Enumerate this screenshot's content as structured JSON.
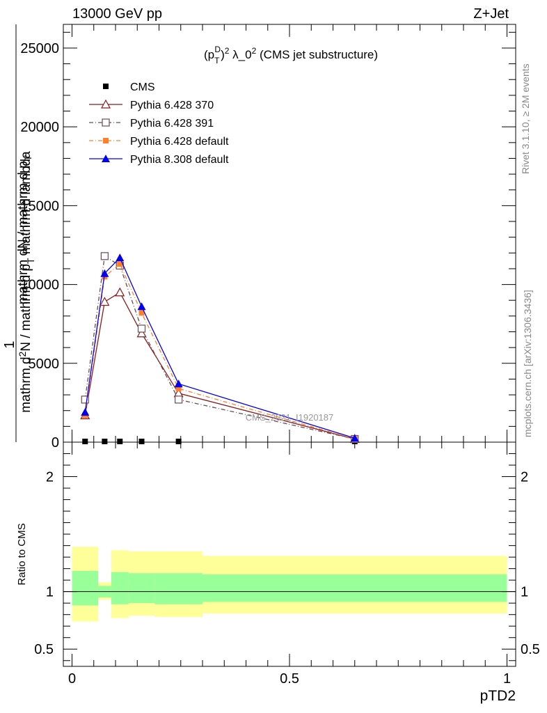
{
  "header": {
    "left": "13000 GeV pp",
    "right": "Z+Jet"
  },
  "side_labels": {
    "rivet": "Rivet 3.1.10, ≥ 2M events",
    "mcplots": "mcplots.cern.ch [arXiv:1306.3436]"
  },
  "main_title": "(p_T^D)^2 λ_0^2 (CMS jet substructure)",
  "watermark": "CMS_2021_I1920187",
  "colors": {
    "cms": "#000000",
    "p370": "#8b1a1a",
    "p391": "#6b4a55",
    "p6def": "#ff7f2a",
    "p8def": "#0000ee",
    "band_outer": "#ffff99",
    "band_inner": "#99ff99"
  },
  "chart_data": [
    {
      "type": "line",
      "panel": "main",
      "title": "(p_T^D)^2 λ_0^2 (CMS jet substructure)",
      "xlabel": "pTD2",
      "ylabel": "1 / mathrm dN / mathrm d p_T mathrm d^2N / mathrm d p_T mathrm d lambda",
      "xlim": [
        -0.02,
        1.02
      ],
      "ylim": [
        0,
        26500
      ],
      "yticks": [
        0,
        5000,
        10000,
        15000,
        20000,
        25000
      ],
      "ytick_labels": [
        "0",
        "5000",
        "10000",
        "15000",
        "20000",
        "25000"
      ],
      "legend_position": "top-left",
      "series": [
        {
          "name": "CMS",
          "key": "cms",
          "marker": "square-filled",
          "line": "none",
          "x": [
            0.03,
            0.075,
            0.11,
            0.16,
            0.245,
            0.65
          ],
          "y": [
            0,
            0,
            0,
            0,
            0,
            0
          ]
        },
        {
          "name": "Pythia 6.428 370",
          "key": "p370",
          "marker": "triangle-open",
          "line": "solid",
          "x": [
            0.03,
            0.075,
            0.11,
            0.16,
            0.245,
            0.65
          ],
          "y": [
            1700,
            8900,
            9500,
            6900,
            3100,
            200
          ]
        },
        {
          "name": "Pythia 6.428 391",
          "key": "p391",
          "marker": "square-open",
          "line": "dashdot",
          "x": [
            0.03,
            0.075,
            0.11,
            0.16,
            0.245,
            0.65
          ],
          "y": [
            2700,
            11800,
            11200,
            7200,
            2700,
            200
          ]
        },
        {
          "name": "Pythia 6.428 default",
          "key": "p6def",
          "marker": "square-filled",
          "line": "dashdot",
          "x": [
            0.03,
            0.075,
            0.11,
            0.16,
            0.245,
            0.65
          ],
          "y": [
            1700,
            10500,
            11300,
            8200,
            3400,
            200
          ]
        },
        {
          "name": "Pythia 8.308 default",
          "key": "p8def",
          "marker": "triangle-filled",
          "line": "solid",
          "x": [
            0.03,
            0.075,
            0.11,
            0.16,
            0.245,
            0.65
          ],
          "y": [
            1900,
            10700,
            11700,
            8600,
            3700,
            250
          ]
        }
      ]
    },
    {
      "type": "area",
      "panel": "ratio",
      "ylabel": "Ratio to CMS",
      "xlabel": "pTD2",
      "xlim": [
        -0.02,
        1.02
      ],
      "ylim": [
        0.35,
        2.3
      ],
      "yticks": [
        0.5,
        1,
        2
      ],
      "ytick_labels": [
        "0.5",
        "1",
        "2"
      ],
      "xticks": [
        0,
        0.5,
        1
      ],
      "xtick_labels": [
        "0",
        "0.5",
        "1"
      ],
      "bins": [
        {
          "x0": 0.0,
          "x1": 0.06,
          "outer": [
            0.74,
            1.39
          ],
          "inner": [
            0.88,
            1.18
          ]
        },
        {
          "x0": 0.06,
          "x1": 0.09,
          "outer": [
            0.93,
            1.08
          ],
          "inner": [
            0.95,
            1.05
          ]
        },
        {
          "x0": 0.09,
          "x1": 0.13,
          "outer": [
            0.77,
            1.36
          ],
          "inner": [
            0.89,
            1.17
          ]
        },
        {
          "x0": 0.13,
          "x1": 0.19,
          "outer": [
            0.79,
            1.35
          ],
          "inner": [
            0.9,
            1.16
          ]
        },
        {
          "x0": 0.19,
          "x1": 0.3,
          "outer": [
            0.78,
            1.35
          ],
          "inner": [
            0.89,
            1.16
          ]
        },
        {
          "x0": 0.3,
          "x1": 1.0,
          "outer": [
            0.81,
            1.31
          ],
          "inner": [
            0.91,
            1.15
          ]
        }
      ],
      "reference": 1
    }
  ]
}
